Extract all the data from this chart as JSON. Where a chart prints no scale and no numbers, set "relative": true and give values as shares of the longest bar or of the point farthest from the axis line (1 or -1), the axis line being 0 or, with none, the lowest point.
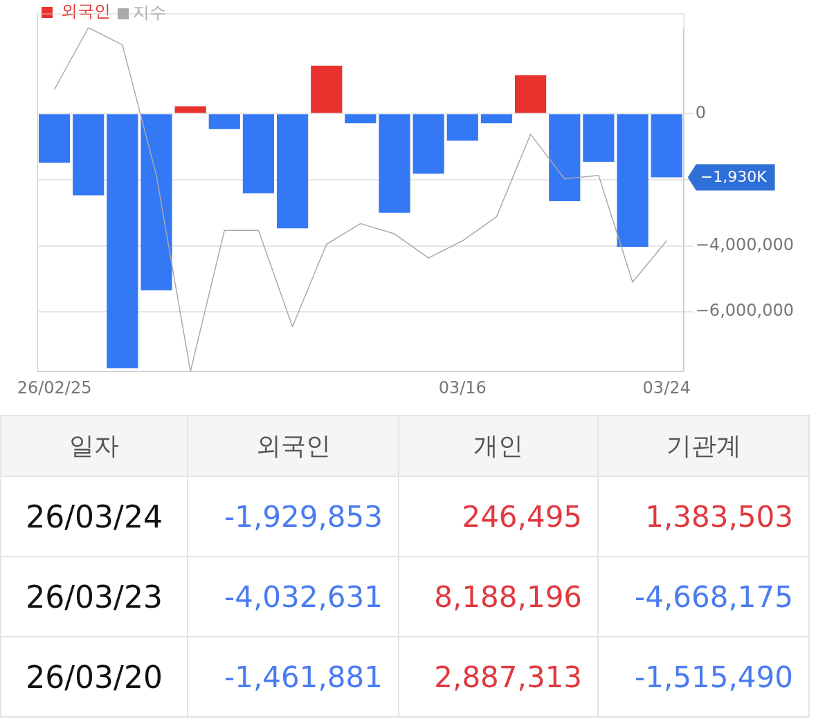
{
  "chart_data": [
    {
      "type": "bar",
      "categories": [
        "26/02/25",
        null,
        null,
        null,
        null,
        null,
        null,
        null,
        null,
        null,
        null,
        null,
        "03/16",
        null,
        null,
        null,
        null,
        null,
        "03/24"
      ],
      "series": [
        {
          "name": "외국인",
          "color": "#e8322d",
          "colors": [
            "#3478f6",
            "#3478f6",
            "#3478f6",
            "#3478f6",
            "#e8322d",
            "#3478f6",
            "#3478f6",
            "#3478f6",
            "#e8322d",
            "#3478f6",
            "#3478f6",
            "#3478f6",
            "#3478f6",
            "#3478f6",
            "#e8322d",
            "#3478f6",
            "#3478f6",
            "#3478f6",
            "#3478f6"
          ],
          "values": [
            -1490000,
            -2470000,
            -7700000,
            -5350000,
            220000,
            -470000,
            -2410000,
            -3470000,
            1450000,
            -290000,
            -3000000,
            -1820000,
            -820000,
            -290000,
            1160000,
            -2650000,
            -1460000,
            -4030000,
            -1930000
          ]
        }
      ],
      "ylim": [
        -7800000,
        2600000
      ],
      "yticks": [
        0,
        {
          "value": -2000000,
          "label": null
        },
        {
          "value": -4000000,
          "label": "−4,000,000"
        },
        {
          "value": -6000000,
          "label": "−6,000,000"
        }
      ],
      "grid": "y",
      "legend": "top left",
      "annotations": [
        "−1,930K"
      ]
    },
    {
      "type": "line",
      "relative": true,
      "categories": [
        null,
        null,
        null,
        null,
        null,
        null,
        null,
        null,
        null,
        null,
        null,
        null,
        null,
        null,
        null,
        null,
        null,
        null,
        null
      ],
      "tick_labels": false,
      "legend": "top left",
      "marker": "none",
      "series": [
        {
          "name": "지수",
          "color": "#aaaaaa",
          "values": [
            0.82,
            1.0,
            0.95,
            0.57,
            0,
            0.41,
            0.41,
            0.13,
            0.37,
            0.43,
            0.4,
            0.33,
            0.38,
            0.45,
            0.69,
            0.56,
            0.57,
            0.26,
            0.38
          ]
        }
      ]
    },
    {
      "type": "other",
      "categories": [
        "일자",
        "외국인",
        "개인",
        "기관계"
      ],
      "y_categories": [
        "26/03/24",
        "26/03/23",
        "26/03/20"
      ],
      "cell_labels": [
        [
          "-1,929,853",
          "246,495",
          "1,383,503"
        ],
        [
          "-4,032,631",
          "8,188,196",
          "-4,668,175"
        ],
        [
          "-1,461,881",
          "2,887,313",
          "-1,515,490"
        ]
      ]
    }
  ]
}
